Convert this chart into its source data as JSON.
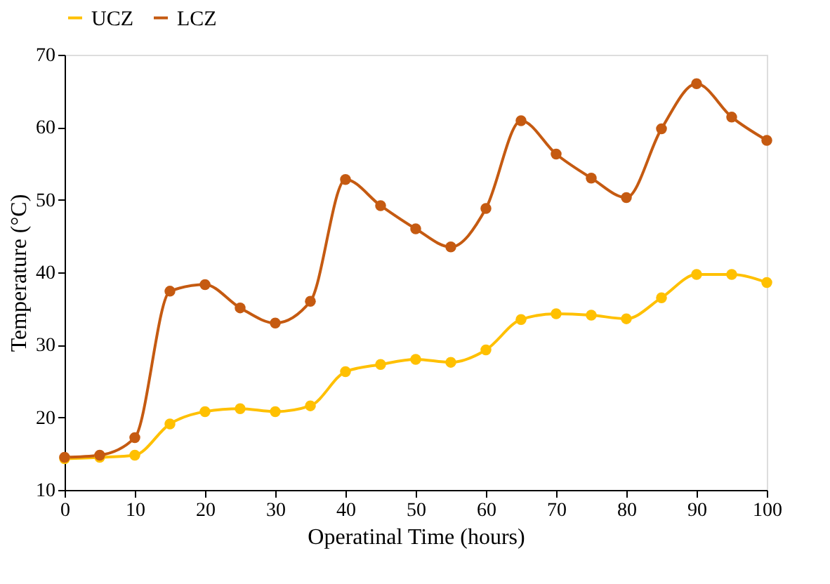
{
  "chart_data": {
    "type": "line",
    "xlabel": "Operatinal Time (hours)",
    "ylabel": "Temperature (°C)",
    "x": [
      0,
      5,
      10,
      15,
      20,
      25,
      30,
      35,
      40,
      45,
      50,
      55,
      60,
      65,
      70,
      75,
      80,
      85,
      90,
      95,
      100
    ],
    "series": [
      {
        "name": "UCZ",
        "color": "#ffc000",
        "values": [
          14.3,
          14.5,
          14.8,
          19.1,
          20.8,
          21.2,
          20.8,
          21.6,
          26.3,
          27.3,
          28,
          27.6,
          29.3,
          33.5,
          34.3,
          34.1,
          33.6,
          36.5,
          39.7,
          39.7,
          38.6
        ]
      },
      {
        "name": "LCZ",
        "color": "#c55a11",
        "values": [
          14.5,
          14.8,
          17.2,
          37.4,
          38.3,
          35.1,
          33,
          36,
          52.8,
          49.2,
          46,
          43.5,
          48.8,
          60.9,
          56.3,
          53,
          50.3,
          59.8,
          66,
          61.4,
          58.2
        ]
      }
    ],
    "xlim": [
      0,
      100
    ],
    "xticks": [
      0,
      10,
      20,
      30,
      40,
      50,
      60,
      70,
      80,
      90,
      100
    ],
    "ylim": [
      10,
      70
    ],
    "yticks": [
      10,
      20,
      30,
      40,
      50,
      60,
      70
    ],
    "grid": false,
    "legend": "top",
    "marker": "circle",
    "line_style": "solid"
  }
}
